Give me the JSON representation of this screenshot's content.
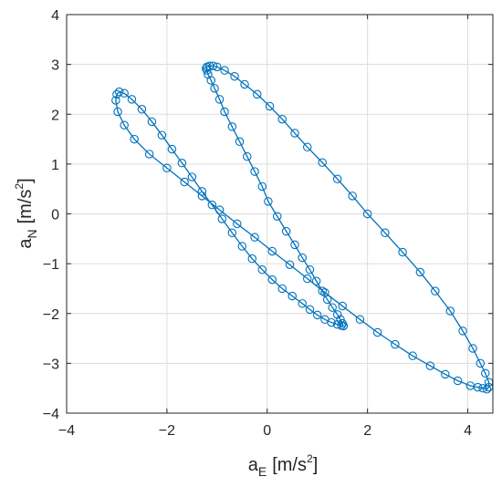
{
  "chart_data": {
    "type": "line",
    "xlabel": {
      "base": "a",
      "subscript": "E",
      "unit_before": "[m/s",
      "superscript": "2",
      "unit_after": "]"
    },
    "ylabel": {
      "base": "a",
      "subscript": "N",
      "unit_before": "[m/s",
      "superscript": "2",
      "unit_after": "]"
    },
    "xlim": [
      -4,
      4.5
    ],
    "ylim": [
      -4,
      4
    ],
    "xticks": [
      -4,
      -2,
      0,
      2,
      4
    ],
    "yticks": [
      -4,
      -3,
      -2,
      -1,
      0,
      1,
      2,
      3,
      4
    ],
    "grid": true,
    "color": "#0072BD",
    "marker": "circle",
    "series": [
      {
        "x": [
          1.52,
          1.5,
          1.46,
          1.4,
          1.3,
          1.2,
          1.1,
          0.98,
          0.85,
          0.7,
          0.55,
          0.38,
          0.2,
          0.02,
          -0.1,
          -0.25,
          -0.4,
          -0.55,
          -0.7,
          -0.85,
          -0.95,
          -1.05,
          -1.12,
          -1.18,
          -1.2,
          -1.22,
          -1.2,
          -1.15,
          -1.08,
          -1.0,
          -0.85,
          -0.65,
          -0.45,
          -0.2,
          0.05,
          0.3,
          0.55,
          0.8,
          1.1,
          1.4,
          1.7,
          2.0,
          2.35,
          2.7,
          3.05,
          3.35,
          3.65,
          3.9,
          4.1,
          4.25,
          4.35,
          4.42,
          4.42,
          4.38,
          4.3,
          4.2,
          4.05,
          3.8,
          3.55,
          3.25,
          2.9,
          2.55,
          2.2,
          1.85,
          1.5,
          1.15,
          0.8,
          0.45,
          0.1,
          -0.25,
          -0.6,
          -0.95,
          -1.3,
          -1.65,
          -2.0,
          -2.35,
          -2.65,
          -2.85,
          -2.98,
          -3.02,
          -3.0,
          -2.95,
          -2.85,
          -2.7,
          -2.5,
          -2.3,
          -2.1,
          -1.9,
          -1.7,
          -1.5,
          -1.3,
          -1.1,
          -0.9,
          -0.7,
          -0.5,
          -0.3,
          -0.1,
          0.1,
          0.3,
          0.5,
          0.7,
          0.85,
          1.0,
          1.15,
          1.28,
          1.4,
          1.48,
          1.52
        ],
        "y": [
          -2.25,
          -2.2,
          -2.12,
          -2.02,
          -1.88,
          -1.72,
          -1.55,
          -1.35,
          -1.12,
          -0.88,
          -0.62,
          -0.35,
          -0.05,
          0.25,
          0.55,
          0.85,
          1.15,
          1.45,
          1.75,
          2.05,
          2.3,
          2.52,
          2.68,
          2.8,
          2.88,
          2.92,
          2.95,
          2.97,
          2.97,
          2.95,
          2.88,
          2.76,
          2.6,
          2.4,
          2.16,
          1.9,
          1.62,
          1.34,
          1.03,
          0.7,
          0.36,
          0.0,
          -0.38,
          -0.77,
          -1.17,
          -1.55,
          -1.95,
          -2.35,
          -2.7,
          -3.0,
          -3.2,
          -3.38,
          -3.48,
          -3.52,
          -3.5,
          -3.48,
          -3.45,
          -3.35,
          -3.22,
          -3.05,
          -2.85,
          -2.62,
          -2.38,
          -2.12,
          -1.85,
          -1.58,
          -1.3,
          -1.02,
          -0.75,
          -0.47,
          -0.2,
          0.08,
          0.36,
          0.64,
          0.92,
          1.2,
          1.5,
          1.78,
          2.05,
          2.28,
          2.4,
          2.45,
          2.42,
          2.3,
          2.1,
          1.85,
          1.58,
          1.3,
          1.02,
          0.74,
          0.45,
          0.18,
          -0.1,
          -0.38,
          -0.65,
          -0.9,
          -1.12,
          -1.32,
          -1.5,
          -1.65,
          -1.8,
          -1.92,
          -2.03,
          -2.12,
          -2.18,
          -2.22,
          -2.24,
          -2.25
        ]
      }
    ]
  }
}
